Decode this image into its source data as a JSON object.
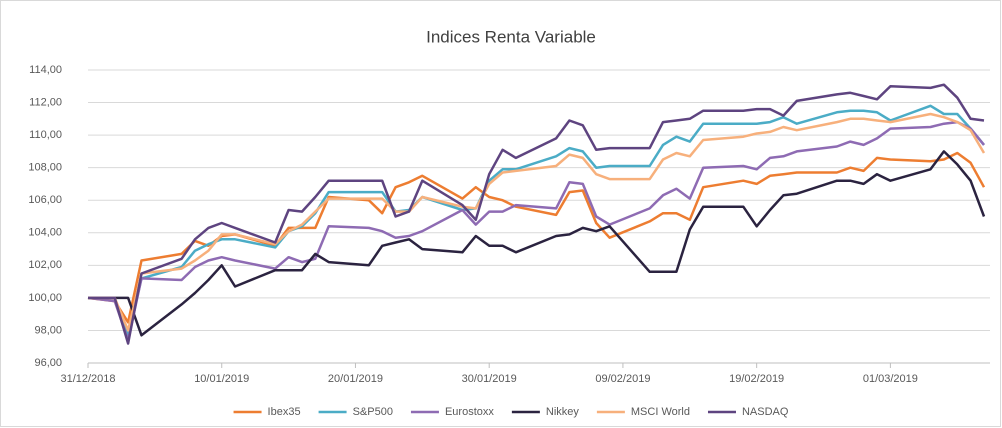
{
  "chart_data": {
    "type": "line",
    "title": "Indices Renta Variable",
    "x": [
      "2018-12-31",
      "2019-01-02",
      "2019-01-03",
      "2019-01-04",
      "2019-01-07",
      "2019-01-08",
      "2019-01-09",
      "2019-01-10",
      "2019-01-11",
      "2019-01-14",
      "2019-01-15",
      "2019-01-16",
      "2019-01-17",
      "2019-01-18",
      "2019-01-21",
      "2019-01-22",
      "2019-01-23",
      "2019-01-24",
      "2019-01-25",
      "2019-01-28",
      "2019-01-29",
      "2019-01-30",
      "2019-01-31",
      "2019-02-01",
      "2019-02-04",
      "2019-02-05",
      "2019-02-06",
      "2019-02-07",
      "2019-02-08",
      "2019-02-11",
      "2019-02-12",
      "2019-02-13",
      "2019-02-14",
      "2019-02-15",
      "2019-02-18",
      "2019-02-19",
      "2019-02-20",
      "2019-02-21",
      "2019-02-22",
      "2019-02-25",
      "2019-02-26",
      "2019-02-27",
      "2019-02-28",
      "2019-03-01",
      "2019-03-04",
      "2019-03-05",
      "2019-03-06",
      "2019-03-07",
      "2019-03-08"
    ],
    "series": [
      {
        "name": "Ibex35",
        "color": "#ed7d31",
        "values": [
          100,
          99.8,
          98.5,
          102.3,
          102.7,
          103.5,
          103.2,
          103.8,
          103.9,
          103.2,
          104.3,
          104.3,
          104.3,
          106.2,
          106.0,
          105.2,
          106.8,
          107.1,
          107.5,
          106.1,
          106.8,
          106.2,
          106.0,
          105.6,
          105.1,
          106.5,
          106.6,
          104.6,
          103.7,
          104.7,
          105.2,
          105.2,
          104.8,
          106.8,
          107.2,
          107.0,
          107.5,
          107.6,
          107.7,
          107.7,
          108.0,
          107.8,
          108.6,
          108.5,
          108.4,
          108.5,
          108.9,
          108.3,
          106.8
        ]
      },
      {
        "name": "S&P500",
        "color": "#4bacc6",
        "values": [
          100,
          100,
          97.7,
          101.2,
          101.9,
          102.9,
          103.3,
          103.6,
          103.6,
          103.1,
          104.1,
          104.4,
          105.2,
          106.5,
          106.5,
          106.5,
          105.3,
          105.4,
          106.2,
          105.4,
          105.5,
          107.2,
          107.9,
          107.9,
          108.7,
          109.2,
          109.0,
          108.0,
          108.1,
          108.1,
          109.4,
          109.9,
          109.6,
          110.7,
          110.7,
          110.7,
          110.8,
          111.1,
          110.7,
          111.4,
          111.5,
          111.5,
          111.4,
          110.9,
          111.8,
          111.3,
          111.3,
          110.4,
          109.4
        ]
      },
      {
        "name": "Eurostoxx",
        "color": "#8e6bb3",
        "values": [
          100,
          99.8,
          97.4,
          101.2,
          101.1,
          101.9,
          102.3,
          102.5,
          102.3,
          101.8,
          102.5,
          102.2,
          102.4,
          104.4,
          104.3,
          104.1,
          103.7,
          103.8,
          104.1,
          105.4,
          104.5,
          105.3,
          105.3,
          105.7,
          105.5,
          107.1,
          107.0,
          105.0,
          104.5,
          105.5,
          106.3,
          106.7,
          106.1,
          108.0,
          108.1,
          107.9,
          108.6,
          108.7,
          109.0,
          109.3,
          109.6,
          109.4,
          109.8,
          110.4,
          110.5,
          110.7,
          110.8,
          110.4,
          109.4
        ]
      },
      {
        "name": "Nikkey",
        "color": "#2b2340",
        "values": [
          100,
          100,
          100,
          97.7,
          99.6,
          100.3,
          101.1,
          102.0,
          100.7,
          101.7,
          101.7,
          101.7,
          102.7,
          102.2,
          102.0,
          103.2,
          103.4,
          103.6,
          103.0,
          102.8,
          103.8,
          103.2,
          103.2,
          102.8,
          103.8,
          103.9,
          104.3,
          104.1,
          104.4,
          101.6,
          101.6,
          101.6,
          104.2,
          105.6,
          105.6,
          104.4,
          105.4,
          106.3,
          106.4,
          107.2,
          107.2,
          107.0,
          107.6,
          107.2,
          107.9,
          109.0,
          108.2,
          107.2,
          105.0
        ]
      },
      {
        "name": "MSCI World",
        "color": "#f7b07c",
        "values": [
          100,
          100,
          98.0,
          101.5,
          101.8,
          102.3,
          102.9,
          103.9,
          103.9,
          103.3,
          104.1,
          104.5,
          105.3,
          106.1,
          106.1,
          106.1,
          105.3,
          105.3,
          106.2,
          105.6,
          105.5,
          107.0,
          107.7,
          107.8,
          108.1,
          108.8,
          108.6,
          107.6,
          107.3,
          107.3,
          108.5,
          108.9,
          108.7,
          109.7,
          109.9,
          110.1,
          110.2,
          110.5,
          110.3,
          110.8,
          111.0,
          111.0,
          110.9,
          110.8,
          111.3,
          111.1,
          110.8,
          110.3,
          108.9
        ]
      },
      {
        "name": "NASDAQ",
        "color": "#5e4480",
        "values": [
          100,
          100,
          97.2,
          101.5,
          102.4,
          103.6,
          104.3,
          104.6,
          104.3,
          103.4,
          105.4,
          105.3,
          106.2,
          107.2,
          107.2,
          107.2,
          105.0,
          105.3,
          107.2,
          105.7,
          104.8,
          107.6,
          109.1,
          108.6,
          109.8,
          110.9,
          110.6,
          109.1,
          109.2,
          109.2,
          110.8,
          110.9,
          111.0,
          111.5,
          111.5,
          111.6,
          111.6,
          111.2,
          112.1,
          112.5,
          112.6,
          112.4,
          112.2,
          113.0,
          112.9,
          113.1,
          112.3,
          111.0,
          110.9
        ]
      }
    ],
    "xlim": [
      "2018-12-31",
      "2019-03-08"
    ],
    "xticks": [
      {
        "value": "2018-12-31",
        "label": "31/12/2018"
      },
      {
        "value": "2019-01-10",
        "label": "10/01/2019"
      },
      {
        "value": "2019-01-20",
        "label": "20/01/2019"
      },
      {
        "value": "2019-01-30",
        "label": "30/01/2019"
      },
      {
        "value": "2019-02-09",
        "label": "09/02/2019"
      },
      {
        "value": "2019-02-19",
        "label": "19/02/2019"
      },
      {
        "value": "2019-03-01",
        "label": "01/03/2019"
      }
    ],
    "ylim": [
      96,
      114
    ],
    "yticks": [
      {
        "value": 96,
        "label": "96,00"
      },
      {
        "value": 98,
        "label": "98,00"
      },
      {
        "value": 100,
        "label": "100,00"
      },
      {
        "value": 102,
        "label": "102,00"
      },
      {
        "value": 104,
        "label": "104,00"
      },
      {
        "value": 106,
        "label": "106,00"
      },
      {
        "value": 108,
        "label": "108,00"
      },
      {
        "value": 110,
        "label": "110,00"
      },
      {
        "value": 112,
        "label": "112,00"
      },
      {
        "value": 114,
        "label": "114,00"
      }
    ],
    "grid": true,
    "legend": "bottom"
  }
}
